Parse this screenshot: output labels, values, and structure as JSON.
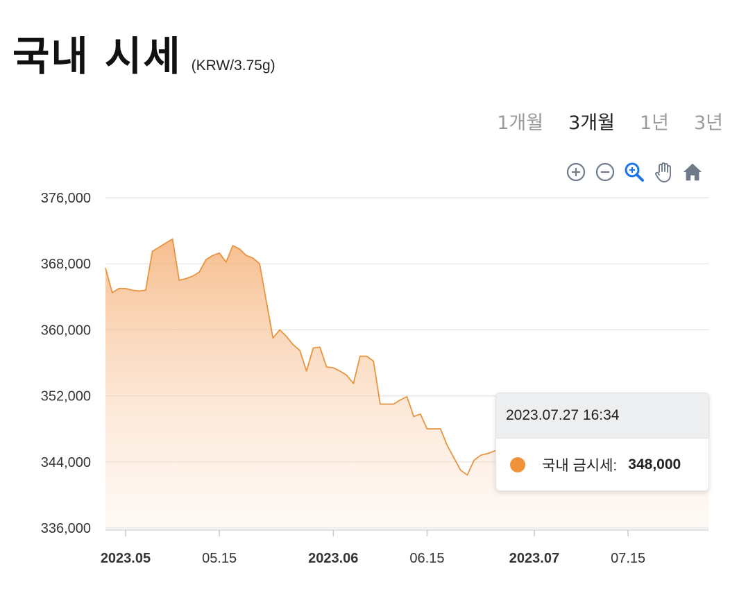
{
  "header": {
    "title": "국내 시세",
    "unit": "(KRW/3.75g)"
  },
  "range_tabs": [
    {
      "label": "1개월",
      "active": false
    },
    {
      "label": "3개월",
      "active": true
    },
    {
      "label": "1년",
      "active": false
    },
    {
      "label": "3년",
      "active": false
    }
  ],
  "toolbar": {
    "icons": [
      "zoom-in-icon",
      "zoom-out-icon",
      "selection-zoom-icon",
      "pan-hand-icon",
      "reset-home-icon"
    ]
  },
  "colors": {
    "series": "#f0923a",
    "line": "#e8943f",
    "zoom_active": "#1a73e8",
    "toolbar_icon": "#6e7a8a"
  },
  "tooltip": {
    "datetime": "2023.07.27 16:34",
    "series_name": "국내 금시세:",
    "value": "348,000"
  },
  "chart_data": {
    "type": "area",
    "title": "",
    "xlabel": "",
    "ylabel": "",
    "ylim": [
      336000,
      376000
    ],
    "y_ticks": [
      "376,000",
      "368,000",
      "360,000",
      "352,000",
      "344,000",
      "336,000"
    ],
    "y_tick_values": [
      376000,
      368000,
      360000,
      352000,
      344000,
      336000
    ],
    "x_ticks": [
      {
        "label": "2023.05",
        "date": "2023-05-01",
        "bold": true
      },
      {
        "label": "05.15",
        "date": "2023-05-15",
        "bold": false
      },
      {
        "label": "2023.06",
        "date": "2023-06-01",
        "bold": true
      },
      {
        "label": "06.15",
        "date": "2023-06-15",
        "bold": false
      },
      {
        "label": "2023.07",
        "date": "2023-07-01",
        "bold": true
      },
      {
        "label": "07.15",
        "date": "2023-07-15",
        "bold": false
      }
    ],
    "x_range": [
      "2023-04-28",
      "2023-07-27"
    ],
    "grid": true,
    "series": [
      {
        "name": "국내 금시세",
        "points": [
          [
            "2023-04-28",
            367500
          ],
          [
            "2023-04-29",
            364500
          ],
          [
            "2023-04-30",
            365000
          ],
          [
            "2023-05-01",
            365000
          ],
          [
            "2023-05-02",
            364800
          ],
          [
            "2023-05-03",
            364700
          ],
          [
            "2023-05-04",
            364800
          ],
          [
            "2023-05-05",
            369500
          ],
          [
            "2023-05-06",
            370000
          ],
          [
            "2023-05-07",
            370500
          ],
          [
            "2023-05-08",
            371000
          ],
          [
            "2023-05-09",
            366000
          ],
          [
            "2023-05-10",
            366200
          ],
          [
            "2023-05-11",
            366500
          ],
          [
            "2023-05-12",
            367000
          ],
          [
            "2023-05-13",
            368500
          ],
          [
            "2023-05-14",
            369000
          ],
          [
            "2023-05-15",
            369300
          ],
          [
            "2023-05-16",
            368200
          ],
          [
            "2023-05-17",
            370200
          ],
          [
            "2023-05-18",
            369800
          ],
          [
            "2023-05-19",
            369000
          ],
          [
            "2023-05-20",
            368700
          ],
          [
            "2023-05-21",
            368000
          ],
          [
            "2023-05-22",
            363500
          ],
          [
            "2023-05-23",
            359000
          ],
          [
            "2023-05-24",
            360000
          ],
          [
            "2023-05-25",
            359200
          ],
          [
            "2023-05-26",
            358200
          ],
          [
            "2023-05-27",
            357500
          ],
          [
            "2023-05-28",
            355000
          ],
          [
            "2023-05-29",
            357800
          ],
          [
            "2023-05-30",
            357900
          ],
          [
            "2023-05-31",
            355500
          ],
          [
            "2023-06-01",
            355400
          ],
          [
            "2023-06-02",
            355000
          ],
          [
            "2023-06-03",
            354500
          ],
          [
            "2023-06-04",
            353500
          ],
          [
            "2023-06-05",
            356800
          ],
          [
            "2023-06-06",
            356800
          ],
          [
            "2023-06-07",
            356200
          ],
          [
            "2023-06-08",
            351000
          ],
          [
            "2023-06-09",
            351000
          ],
          [
            "2023-06-10",
            351000
          ],
          [
            "2023-06-11",
            351500
          ],
          [
            "2023-06-12",
            351900
          ],
          [
            "2023-06-13",
            349500
          ],
          [
            "2023-06-14",
            349800
          ],
          [
            "2023-06-15",
            348000
          ],
          [
            "2023-06-16",
            348000
          ],
          [
            "2023-06-17",
            348000
          ],
          [
            "2023-06-18",
            346000
          ],
          [
            "2023-06-19",
            344500
          ],
          [
            "2023-06-20",
            343000
          ],
          [
            "2023-06-21",
            342400
          ],
          [
            "2023-06-22",
            344200
          ],
          [
            "2023-06-23",
            344800
          ],
          [
            "2023-06-24",
            345000
          ],
          [
            "2023-06-25",
            345300
          ],
          [
            "2023-06-26",
            345500
          ],
          [
            "2023-06-27",
            345800
          ],
          [
            "2023-06-28",
            344900
          ],
          [
            "2023-06-29",
            344000
          ],
          [
            "2023-06-30",
            345300
          ],
          [
            "2023-07-01",
            346500
          ],
          [
            "2023-07-02",
            346800
          ],
          [
            "2023-07-03",
            347000
          ],
          [
            "2023-07-04",
            347300
          ],
          [
            "2023-07-05",
            347000
          ],
          [
            "2023-07-06",
            347300
          ],
          [
            "2023-07-07",
            347200
          ],
          [
            "2023-07-08",
            347500
          ],
          [
            "2023-07-09",
            347400
          ],
          [
            "2023-07-10",
            347500
          ],
          [
            "2023-07-11",
            347700
          ],
          [
            "2023-07-12",
            347900
          ],
          [
            "2023-07-13",
            347800
          ],
          [
            "2023-07-14",
            348000
          ],
          [
            "2023-07-15",
            347900
          ],
          [
            "2023-07-16",
            348000
          ],
          [
            "2023-07-17",
            348100
          ],
          [
            "2023-07-18",
            347900
          ],
          [
            "2023-07-19",
            348000
          ],
          [
            "2023-07-20",
            348200
          ],
          [
            "2023-07-21",
            348000
          ],
          [
            "2023-07-22",
            348100
          ],
          [
            "2023-07-23",
            348000
          ],
          [
            "2023-07-24",
            347900
          ],
          [
            "2023-07-25",
            348000
          ],
          [
            "2023-07-26",
            348000
          ],
          [
            "2023-07-27",
            348000
          ]
        ]
      }
    ]
  }
}
